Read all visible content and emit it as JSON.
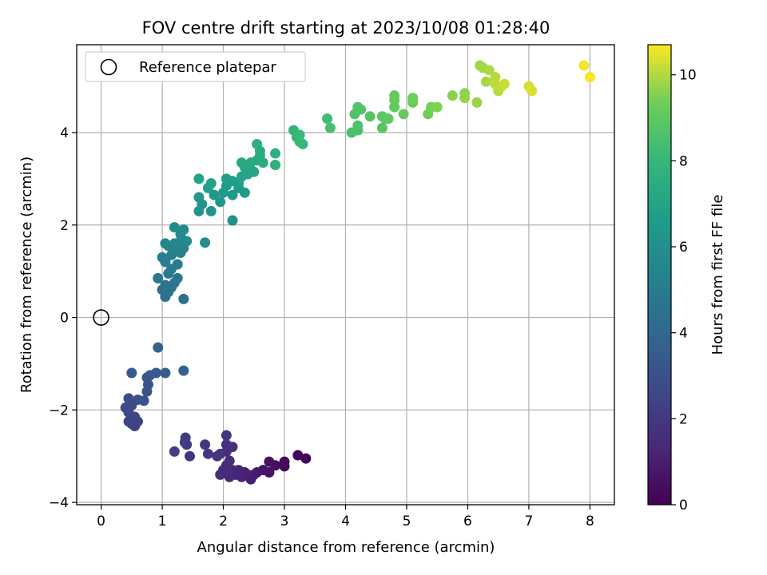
{
  "chart_data": {
    "type": "scatter",
    "title": "FOV centre drift starting at 2023/10/08 01:28:40",
    "xlabel": "Angular distance from reference (arcmin)",
    "ylabel": "Rotation from reference (arcmin)",
    "xlim": [
      -0.4,
      8.4
    ],
    "ylim": [
      -4.05,
      5.9
    ],
    "xticks": [
      0,
      1,
      2,
      3,
      4,
      5,
      6,
      7,
      8
    ],
    "xtick_labels": [
      "0",
      "1",
      "2",
      "3",
      "4",
      "5",
      "6",
      "7",
      "8"
    ],
    "yticks": [
      -4,
      -2,
      0,
      2,
      4
    ],
    "ytick_labels": [
      "−4",
      "−2",
      "0",
      "2",
      "4"
    ],
    "grid": true,
    "legend": {
      "placement": "top-left",
      "entries": [
        "Reference platepar"
      ]
    },
    "reference_point": {
      "x": 0,
      "y": 0
    },
    "colorbar": {
      "label": "Hours from first FF file",
      "colormap": "viridis",
      "range": [
        0,
        10.7
      ],
      "ticks": [
        0,
        2,
        4,
        6,
        8,
        10
      ],
      "tick_labels": [
        "0",
        "2",
        "4",
        "6",
        "8",
        "10"
      ]
    },
    "points": [
      [
        3.35,
        -3.05,
        0.05
      ],
      [
        3.22,
        -2.98,
        0.15
      ],
      [
        3.0,
        -3.12,
        0.25
      ],
      [
        3.0,
        -3.22,
        0.35
      ],
      [
        2.85,
        -3.2,
        0.45
      ],
      [
        2.75,
        -3.12,
        0.55
      ],
      [
        2.75,
        -3.35,
        0.6
      ],
      [
        2.65,
        -3.3,
        0.7
      ],
      [
        2.55,
        -3.35,
        0.8
      ],
      [
        2.5,
        -3.4,
        0.9
      ],
      [
        2.45,
        -3.5,
        1.0
      ],
      [
        2.4,
        -3.4,
        1.05
      ],
      [
        2.35,
        -3.35,
        1.1
      ],
      [
        2.3,
        -3.45,
        1.15
      ],
      [
        2.25,
        -3.3,
        1.2
      ],
      [
        2.2,
        -3.4,
        1.25
      ],
      [
        2.15,
        -3.3,
        1.3
      ],
      [
        2.1,
        -3.45,
        1.35
      ],
      [
        2.05,
        -3.2,
        1.4
      ],
      [
        2.0,
        -3.3,
        1.45
      ],
      [
        1.95,
        -3.4,
        1.5
      ],
      [
        2.1,
        -3.1,
        1.55
      ],
      [
        2.05,
        -2.9,
        1.6
      ],
      [
        2.15,
        -2.8,
        1.65
      ],
      [
        2.05,
        -2.75,
        1.7
      ],
      [
        1.95,
        -2.95,
        1.75
      ],
      [
        1.9,
        -3.0,
        1.8
      ],
      [
        2.05,
        -2.55,
        1.85
      ],
      [
        1.75,
        -2.95,
        1.9
      ],
      [
        1.7,
        -2.75,
        1.95
      ],
      [
        1.45,
        -3.0,
        2.0
      ],
      [
        1.4,
        -2.75,
        2.05
      ],
      [
        1.38,
        -2.6,
        2.1
      ],
      [
        1.37,
        -2.7,
        2.15
      ],
      [
        1.2,
        -2.9,
        2.2
      ],
      [
        0.55,
        -2.35,
        2.3
      ],
      [
        0.5,
        -2.3,
        2.35
      ],
      [
        0.6,
        -2.25,
        2.4
      ],
      [
        0.45,
        -2.25,
        2.45
      ],
      [
        0.55,
        -2.15,
        2.5
      ],
      [
        0.45,
        -2.05,
        2.6
      ],
      [
        0.4,
        -1.95,
        2.7
      ],
      [
        0.5,
        -1.9,
        2.75
      ],
      [
        0.45,
        -1.75,
        2.8
      ],
      [
        0.6,
        -1.78,
        2.9
      ],
      [
        0.7,
        -1.8,
        3.0
      ],
      [
        0.75,
        -1.6,
        3.1
      ],
      [
        0.77,
        -1.45,
        3.15
      ],
      [
        0.75,
        -1.3,
        3.2
      ],
      [
        0.8,
        -1.25,
        3.3
      ],
      [
        0.5,
        -1.2,
        3.4
      ],
      [
        0.9,
        -1.2,
        3.5
      ],
      [
        1.05,
        -1.2,
        3.6
      ],
      [
        1.35,
        -1.15,
        3.7
      ],
      [
        0.93,
        -0.65,
        3.9
      ],
      [
        1.35,
        0.4,
        4.3
      ],
      [
        1.05,
        0.45,
        4.4
      ],
      [
        1.1,
        0.55,
        4.45
      ],
      [
        1.0,
        0.6,
        4.5
      ],
      [
        1.05,
        0.7,
        4.6
      ],
      [
        1.15,
        0.65,
        4.65
      ],
      [
        1.2,
        0.75,
        4.7
      ],
      [
        1.25,
        0.85,
        4.8
      ],
      [
        0.93,
        0.85,
        4.85
      ],
      [
        1.1,
        0.95,
        4.9
      ],
      [
        1.15,
        1.05,
        5.0
      ],
      [
        1.25,
        1.15,
        5.05
      ],
      [
        1.05,
        1.2,
        5.1
      ],
      [
        1.0,
        1.3,
        5.15
      ],
      [
        1.15,
        1.35,
        5.2
      ],
      [
        1.3,
        1.4,
        5.3
      ],
      [
        1.35,
        1.5,
        5.35
      ],
      [
        1.2,
        1.5,
        5.4
      ],
      [
        1.1,
        1.55,
        5.45
      ],
      [
        1.05,
        1.6,
        5.5
      ],
      [
        1.2,
        1.6,
        5.55
      ],
      [
        1.3,
        1.65,
        5.6
      ],
      [
        1.4,
        1.65,
        5.65
      ],
      [
        1.3,
        1.8,
        5.7
      ],
      [
        1.35,
        1.9,
        5.75
      ],
      [
        1.2,
        1.95,
        5.8
      ],
      [
        1.7,
        1.62,
        5.9
      ],
      [
        2.15,
        2.1,
        6.0
      ],
      [
        1.8,
        2.3,
        6.1
      ],
      [
        1.6,
        2.3,
        6.15
      ],
      [
        1.65,
        2.45,
        6.2
      ],
      [
        1.6,
        2.6,
        6.3
      ],
      [
        1.95,
        2.5,
        6.35
      ],
      [
        1.85,
        2.65,
        6.4
      ],
      [
        2.0,
        2.7,
        6.45
      ],
      [
        2.15,
        2.65,
        6.5
      ],
      [
        2.35,
        2.7,
        6.55
      ],
      [
        2.25,
        2.8,
        6.6
      ],
      [
        2.05,
        2.85,
        6.65
      ],
      [
        2.15,
        2.95,
        6.7
      ],
      [
        2.25,
        2.9,
        6.75
      ],
      [
        2.05,
        3.0,
        6.8
      ],
      [
        1.75,
        2.8,
        6.85
      ],
      [
        1.8,
        2.9,
        6.9
      ],
      [
        1.6,
        3.0,
        6.95
      ],
      [
        2.3,
        3.05,
        7.0
      ],
      [
        2.4,
        3.1,
        7.05
      ],
      [
        2.45,
        3.2,
        7.1
      ],
      [
        2.5,
        3.15,
        7.15
      ],
      [
        2.35,
        3.25,
        7.2
      ],
      [
        2.45,
        3.35,
        7.25
      ],
      [
        2.3,
        3.35,
        7.3
      ],
      [
        2.55,
        3.4,
        7.35
      ],
      [
        2.65,
        3.35,
        7.4
      ],
      [
        2.6,
        3.5,
        7.45
      ],
      [
        2.6,
        3.6,
        7.5
      ],
      [
        2.55,
        3.75,
        7.55
      ],
      [
        2.85,
        3.55,
        7.6
      ],
      [
        2.85,
        3.3,
        7.65
      ],
      [
        3.15,
        4.05,
        7.9
      ],
      [
        3.2,
        3.9,
        8.0
      ],
      [
        3.25,
        3.8,
        8.05
      ],
      [
        3.3,
        3.75,
        8.1
      ],
      [
        3.25,
        3.95,
        8.15
      ],
      [
        3.7,
        4.3,
        8.3
      ],
      [
        3.75,
        4.1,
        8.4
      ],
      [
        4.1,
        4.0,
        8.5
      ],
      [
        4.2,
        4.05,
        8.55
      ],
      [
        4.2,
        4.15,
        8.6
      ],
      [
        4.15,
        4.4,
        8.65
      ],
      [
        4.2,
        4.55,
        8.7
      ],
      [
        4.25,
        4.5,
        8.75
      ],
      [
        4.4,
        4.35,
        8.8
      ],
      [
        4.6,
        4.1,
        8.85
      ],
      [
        4.6,
        4.35,
        8.9
      ],
      [
        4.65,
        4.3,
        8.95
      ],
      [
        4.7,
        4.3,
        9.0
      ],
      [
        4.8,
        4.55,
        9.05
      ],
      [
        4.8,
        4.8,
        9.1
      ],
      [
        4.8,
        4.7,
        9.15
      ],
      [
        4.95,
        4.4,
        9.2
      ],
      [
        5.1,
        4.65,
        9.25
      ],
      [
        5.1,
        4.75,
        9.3
      ],
      [
        5.35,
        4.4,
        9.35
      ],
      [
        5.4,
        4.55,
        9.4
      ],
      [
        5.5,
        4.55,
        9.5
      ],
      [
        5.75,
        4.8,
        9.6
      ],
      [
        5.95,
        4.85,
        9.65
      ],
      [
        5.95,
        4.75,
        9.7
      ],
      [
        6.15,
        4.65,
        9.75
      ],
      [
        6.2,
        5.45,
        9.8
      ],
      [
        6.25,
        5.4,
        9.85
      ],
      [
        6.3,
        5.1,
        9.9
      ],
      [
        6.35,
        5.35,
        9.95
      ],
      [
        6.45,
        5.2,
        10.0
      ],
      [
        6.5,
        4.9,
        10.05
      ],
      [
        6.45,
        5.05,
        10.1
      ],
      [
        6.55,
        5.0,
        10.15
      ],
      [
        6.6,
        5.05,
        10.2
      ],
      [
        7.0,
        5.0,
        10.3
      ],
      [
        7.05,
        4.9,
        10.35
      ],
      [
        7.9,
        5.45,
        10.6
      ],
      [
        8.0,
        5.2,
        10.65
      ]
    ]
  }
}
